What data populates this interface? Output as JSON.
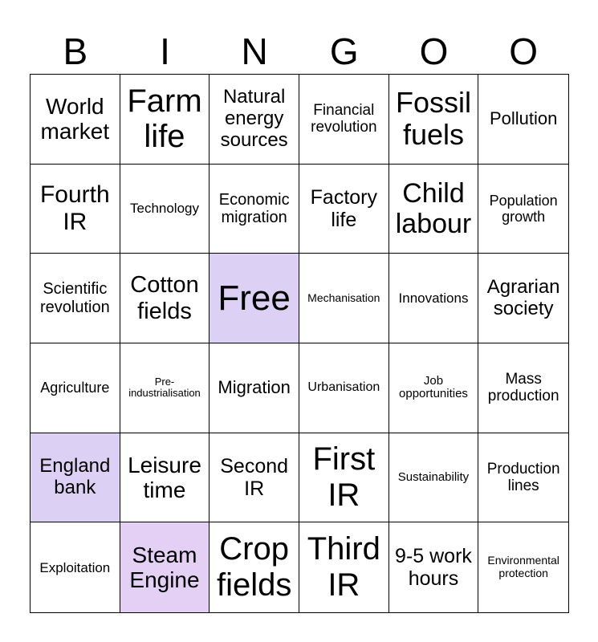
{
  "header": {
    "letters": [
      "B",
      "I",
      "N",
      "G",
      "O",
      "O"
    ]
  },
  "colors": {
    "marked": "#dcd0f4",
    "marked_alt": "#e4d0f4"
  },
  "cells": [
    [
      "World market",
      "Farm life",
      "Natural energy sources",
      "Financial revolution",
      "Fossil fuels",
      "Pollution"
    ],
    [
      "Fourth IR",
      "Technology",
      "Economic migration",
      "Factory life",
      "Child labour",
      "Population growth"
    ],
    [
      "Scientific revolution",
      "Cotton fields",
      "Free",
      "Mechanisation",
      "Innovations",
      "Agrarian society"
    ],
    [
      "Agriculture",
      "Pre-industrialisation",
      "Migration",
      "Urbanisation",
      "Job opportunities",
      "Mass production"
    ],
    [
      "England bank",
      "Leisure time",
      "Second IR",
      "First IR",
      "Sustainability",
      "Production lines"
    ],
    [
      "Exploitation",
      "Steam Engine",
      "Crop fields",
      "Third IR",
      "9-5 work hours",
      "Environmental protection"
    ]
  ],
  "marked": [
    [
      2,
      2
    ],
    [
      4,
      0
    ],
    [
      5,
      1
    ]
  ]
}
